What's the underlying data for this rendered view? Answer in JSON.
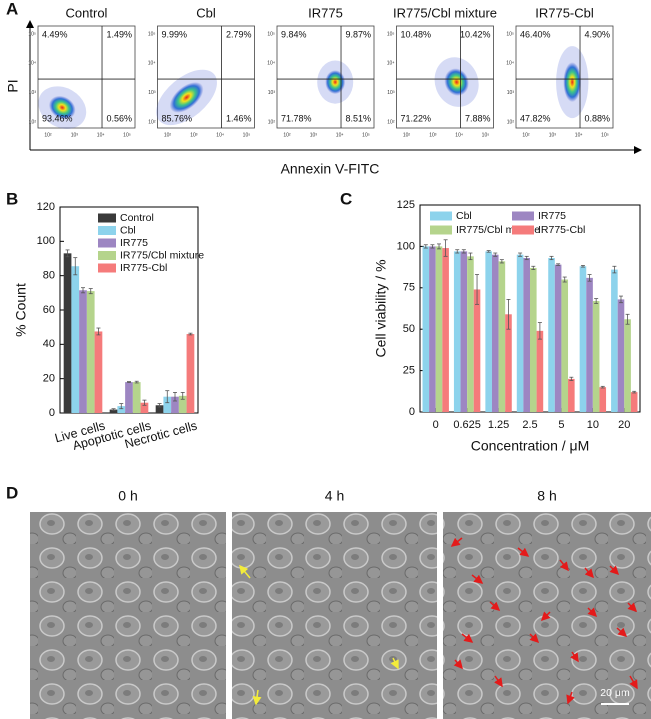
{
  "panel_labels": [
    "A",
    "B",
    "C",
    "D"
  ],
  "flow": {
    "y_axis_label": "PI",
    "x_axis_label": "Annexin V-FITC",
    "ticks": [
      "10²",
      "10³",
      "10⁴",
      "10⁵"
    ],
    "samples": [
      {
        "name": "Control",
        "quadrants": [
          "4.49%",
          "1.49%",
          "93.46%",
          "0.56%"
        ]
      },
      {
        "name": "Cbl",
        "quadrants": [
          "9.99%",
          "2.79%",
          "85.76%",
          "1.46%"
        ]
      },
      {
        "name": "IR775",
        "quadrants": [
          "9.84%",
          "9.87%",
          "71.78%",
          "8.51%"
        ]
      },
      {
        "name": "IR775/Cbl mixture",
        "quadrants": [
          "10.48%",
          "10.42%",
          "71.22%",
          "7.88%"
        ]
      },
      {
        "name": "IR775-Cbl",
        "quadrants": [
          "46.40%",
          "4.90%",
          "47.82%",
          "0.88%"
        ]
      }
    ]
  },
  "chart_data": [
    {
      "type": "bar",
      "y_label": "% Count",
      "categories": [
        "Live cells",
        "Apoptotic cells",
        "Necrotic cells"
      ],
      "x_label_rotation": -15,
      "series": [
        {
          "name": "Control",
          "color": "#3a3a3a",
          "values": [
            93,
            2,
            4.5
          ],
          "errors": [
            2,
            0.5,
            1
          ]
        },
        {
          "name": "Cbl",
          "color": "#8dd3ec",
          "values": [
            85.5,
            4,
            9.5
          ],
          "errors": [
            5,
            1.5,
            3.5
          ]
        },
        {
          "name": "IR775",
          "color": "#9d86c2",
          "values": [
            71.5,
            18,
            9.5
          ],
          "errors": [
            1.5,
            0.3,
            2.5
          ]
        },
        {
          "name": "IR775/Cbl mixture",
          "color": "#b5d48c",
          "values": [
            71,
            18,
            10
          ],
          "errors": [
            1.5,
            0.5,
            2
          ]
        },
        {
          "name": "IR775-Cbl",
          "color": "#f57b7b",
          "values": [
            47.5,
            6,
            46
          ],
          "errors": [
            2,
            1.5,
            0.5
          ]
        }
      ],
      "ylim": [
        0,
        120
      ],
      "yticks": [
        0,
        20,
        40,
        60,
        80,
        100,
        120
      ],
      "legend": "upper right",
      "legend_columns": 1
    },
    {
      "type": "bar",
      "y_label": "Cell viability / %",
      "x_label": "Concentration / μM",
      "categories": [
        "0",
        "0.625",
        "1.25",
        "2.5",
        "5",
        "10",
        "20"
      ],
      "x_label_rotation": 0,
      "series": [
        {
          "name": "Cbl",
          "color": "#8dd3ec",
          "values": [
            100,
            97,
            97,
            95,
            93,
            88,
            86
          ],
          "errors": [
            1,
            1,
            0.5,
            1,
            1,
            0.5,
            2
          ]
        },
        {
          "name": "IR775",
          "color": "#9d86c2",
          "values": [
            100,
            97,
            95,
            93,
            89,
            81,
            68
          ],
          "errors": [
            1,
            1,
            1,
            1,
            0.5,
            2,
            2
          ]
        },
        {
          "name": "IR775/Cbl mixture",
          "color": "#b5d48c",
          "values": [
            100,
            94,
            91,
            87,
            80,
            67,
            56
          ],
          "errors": [
            1.5,
            2,
            1,
            1,
            1.5,
            1.5,
            3
          ]
        },
        {
          "name": "IR775-Cbl",
          "color": "#f57b7b",
          "values": [
            99,
            74,
            59,
            49,
            20,
            15,
            12
          ],
          "errors": [
            5,
            9,
            9,
            5,
            1,
            0.5,
            0.5
          ]
        }
      ],
      "ylim": [
        0,
        125
      ],
      "yticks": [
        0,
        25,
        50,
        75,
        100,
        125
      ],
      "legend": "upper center",
      "legend_columns": 2
    }
  ],
  "microscopy": {
    "panels": [
      "0 h",
      "4 h",
      "8 h"
    ],
    "scale_bar": "20 μm"
  }
}
